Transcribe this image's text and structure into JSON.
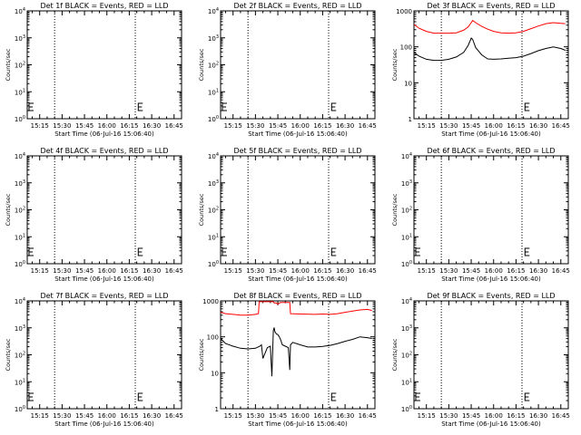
{
  "page": {
    "background": "#ffffff"
  },
  "time_ticks": [
    "15:15",
    "15:30",
    "15:45",
    "16:00",
    "16:15",
    "16:30",
    "16:45"
  ],
  "colors": {
    "events": "#000000",
    "lld": "#ff0000"
  },
  "chart_data": [
    {
      "type": "line",
      "title": "Det 1f BLACK = Events, RED = LLD",
      "xlabel": "Start Time (06-Jul-16 15:06:40)",
      "ylabel": "Counts/sec",
      "xlim": [
        "15:06:40",
        "16:50:00"
      ],
      "yscale": "log",
      "ytick_labels": [
        "10^0",
        "10^1",
        "10^2",
        "10^3",
        "10^4"
      ],
      "ylim": [
        1,
        10000
      ],
      "vlines": [
        "15:25",
        "16:19"
      ],
      "e_markers": [
        "15:06:40",
        "16:21"
      ],
      "series": []
    },
    {
      "type": "line",
      "title": "Det 2f BLACK = Events, RED = LLD",
      "xlabel": "Start Time (06-Jul-16 15:06:40)",
      "ylabel": "Counts/sec",
      "xlim": [
        "15:06:40",
        "16:50:00"
      ],
      "yscale": "log",
      "ytick_labels": [
        "10^0",
        "10^1",
        "10^2",
        "10^3",
        "10^4"
      ],
      "ylim": [
        1,
        10000
      ],
      "vlines": [
        "15:25",
        "16:19"
      ],
      "e_markers": [
        "15:06:40",
        "16:21"
      ],
      "series": []
    },
    {
      "type": "line",
      "title": "Det 3f BLACK = Events, RED = LLD",
      "xlabel": "Start Time (06-Jul-16 15:06:40)",
      "ylabel": "Counts/sec",
      "xlim": [
        "15:06:40",
        "16:50:00"
      ],
      "yscale": "log",
      "ytick_labels": [
        "1",
        "10",
        "100",
        "1000"
      ],
      "ylim": [
        1,
        1000
      ],
      "vlines": [
        "15:25",
        "16:19"
      ],
      "e_markers": [
        "16:21"
      ],
      "series": [
        {
          "color": "#ff0000",
          "x": [
            "15:06:40",
            "15:10",
            "15:15",
            "15:20",
            "15:25",
            "15:30",
            "15:35",
            "15:40",
            "15:43",
            "15:46",
            "15:48",
            "15:52",
            "15:56",
            "16:00",
            "16:05",
            "16:10",
            "16:15",
            "16:20",
            "16:25",
            "16:30",
            "16:35",
            "16:40",
            "16:45",
            "16:48"
          ],
          "y": [
            420,
            330,
            270,
            240,
            240,
            240,
            245,
            290,
            360,
            540,
            470,
            370,
            310,
            270,
            245,
            240,
            245,
            270,
            320,
            380,
            440,
            470,
            450,
            440
          ]
        },
        {
          "color": "#000000",
          "x": [
            "15:06:40",
            "15:10",
            "15:15",
            "15:20",
            "15:25",
            "15:30",
            "15:35",
            "15:40",
            "15:43",
            "15:45",
            "15:46",
            "15:48",
            "15:52",
            "15:56",
            "16:00",
            "16:05",
            "16:10",
            "16:15",
            "16:20",
            "16:25",
            "16:30",
            "16:35",
            "16:40",
            "16:45",
            "16:48"
          ],
          "y": [
            70,
            55,
            45,
            42,
            42,
            45,
            52,
            70,
            110,
            175,
            160,
            95,
            60,
            46,
            45,
            46,
            48,
            50,
            55,
            65,
            78,
            90,
            100,
            90,
            80
          ]
        }
      ]
    },
    {
      "type": "line",
      "title": "Det 4f BLACK = Events, RED = LLD",
      "xlabel": "Start Time (06-Jul-16 15:06:40)",
      "ylabel": "Counts/sec",
      "xlim": [
        "15:06:40",
        "16:50:00"
      ],
      "yscale": "log",
      "ytick_labels": [
        "10^0",
        "10^1",
        "10^2",
        "10^3",
        "10^4"
      ],
      "ylim": [
        1,
        10000
      ],
      "vlines": [
        "15:25",
        "16:19"
      ],
      "e_markers": [
        "15:06:40",
        "16:21"
      ],
      "series": []
    },
    {
      "type": "line",
      "title": "Det 5f BLACK = Events, RED = LLD",
      "xlabel": "Start Time (06-Jul-16 15:06:40)",
      "ylabel": "Counts/sec",
      "xlim": [
        "15:06:40",
        "16:50:00"
      ],
      "yscale": "log",
      "ytick_labels": [
        "10^0",
        "10^1",
        "10^2",
        "10^3",
        "10^4"
      ],
      "ylim": [
        1,
        10000
      ],
      "vlines": [
        "15:25",
        "16:19"
      ],
      "e_markers": [
        "15:06:40",
        "16:21"
      ],
      "series": []
    },
    {
      "type": "line",
      "title": "Det 6f BLACK = Events, RED = LLD",
      "xlabel": "Start Time (06-Jul-16 15:06:40)",
      "ylabel": "Counts/sec",
      "xlim": [
        "15:06:40",
        "16:50:00"
      ],
      "yscale": "log",
      "ytick_labels": [
        "10^0",
        "10^1",
        "10^2",
        "10^3",
        "10^4"
      ],
      "ylim": [
        1,
        10000
      ],
      "vlines": [
        "15:25",
        "16:19"
      ],
      "e_markers": [
        "15:06:40",
        "16:21"
      ],
      "series": []
    },
    {
      "type": "line",
      "title": "Det 7f BLACK = Events, RED = LLD",
      "xlabel": "Start Time (06-Jul-16 15:06:40)",
      "ylabel": "Counts/sec",
      "xlim": [
        "15:06:40",
        "16:50:00"
      ],
      "yscale": "log",
      "ytick_labels": [
        "10^0",
        "10^1",
        "10^2",
        "10^3",
        "10^4"
      ],
      "ylim": [
        1,
        10000
      ],
      "vlines": [
        "15:25",
        "16:19"
      ],
      "e_markers": [
        "15:06:40",
        "16:21"
      ],
      "series": []
    },
    {
      "type": "line",
      "title": "Det 8f BLACK = Events, RED = LLD",
      "xlabel": "Start Time (06-Jul-16 15:06:40)",
      "ylabel": "Counts/sec",
      "xlim": [
        "15:06:40",
        "16:50:00"
      ],
      "yscale": "log",
      "ytick_labels": [
        "1",
        "10",
        "100",
        "1000"
      ],
      "ylim": [
        1,
        1000
      ],
      "vlines": [
        "15:25",
        "16:19"
      ],
      "e_markers": [
        "16:21"
      ],
      "series": [
        {
          "color": "#ff0000",
          "x": [
            "15:06:40",
            "15:10",
            "15:15",
            "15:20",
            "15:25",
            "15:30",
            "15:32",
            "15:32:30",
            "15:35",
            "15:40",
            "15:42",
            "15:42:30",
            "15:44",
            "15:45",
            "15:46",
            "15:47",
            "15:48",
            "15:50",
            "15:53",
            "15:53:30",
            "16:00",
            "16:10",
            "16:15",
            "16:20",
            "16:25",
            "16:30",
            "16:35",
            "16:40",
            "16:45",
            "16:48"
          ],
          "y": [
            480,
            440,
            420,
            400,
            400,
            420,
            440,
            950,
            950,
            950,
            950,
            880,
            880,
            800,
            870,
            900,
            900,
            900,
            900,
            440,
            430,
            420,
            430,
            420,
            440,
            480,
            520,
            560,
            580,
            540
          ]
        },
        {
          "color": "#000000",
          "x": [
            "15:06:40",
            "15:10",
            "15:15",
            "15:20",
            "15:25",
            "15:30",
            "15:33",
            "15:34",
            "15:35",
            "15:38",
            "15:40",
            "15:41",
            "15:42",
            "15:42:30",
            "15:43",
            "15:44",
            "15:45",
            "15:46",
            "15:47",
            "15:48",
            "15:50",
            "15:52",
            "15:53",
            "15:53:30",
            "15:55",
            "16:00",
            "16:05",
            "16:10",
            "16:15",
            "16:20",
            "16:25",
            "16:30",
            "16:35",
            "16:40",
            "16:45",
            "16:48"
          ],
          "y": [
            90,
            65,
            55,
            48,
            46,
            48,
            55,
            60,
            25,
            50,
            55,
            8,
            150,
            180,
            140,
            120,
            115,
            100,
            80,
            60,
            55,
            50,
            12,
            60,
            70,
            60,
            52,
            52,
            54,
            58,
            65,
            75,
            85,
            100,
            95,
            90
          ]
        }
      ]
    },
    {
      "type": "line",
      "title": "Det 9f BLACK = Events, RED = LLD",
      "xlabel": "Start Time (06-Jul-16 15:06:40)",
      "ylabel": "Counts/sec",
      "xlim": [
        "15:06:40",
        "16:50:00"
      ],
      "yscale": "log",
      "ytick_labels": [
        "10^0",
        "10^1",
        "10^2",
        "10^3",
        "10^4"
      ],
      "ylim": [
        1,
        10000
      ],
      "vlines": [
        "15:25",
        "16:19"
      ],
      "e_markers": [
        "15:06:40",
        "16:21"
      ],
      "series": []
    }
  ]
}
